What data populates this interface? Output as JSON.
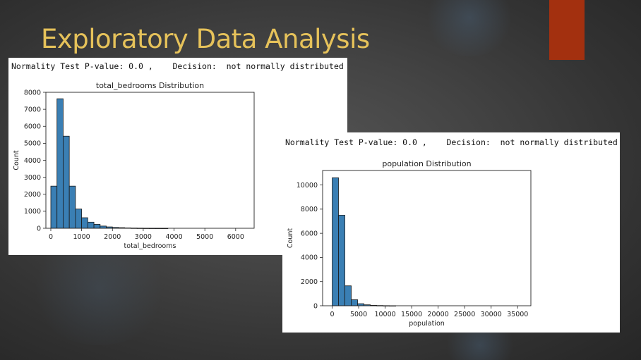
{
  "slide": {
    "title": "Exploratory Data Analysis",
    "colors": {
      "title": "#e6c25a",
      "accent_block": "#a3300f",
      "bar_fill": "#3a7fb4",
      "bar_edge": "#1a1a1a"
    }
  },
  "panels": [
    {
      "test_line": "Normality Test P-value: 0.0 ,    Decision:  not normally distributed"
    },
    {
      "test_line": "Normality Test P-value: 0.0 ,    Decision:  not normally distributed"
    }
  ],
  "chart_data": [
    {
      "type": "bar",
      "title": "total_bedrooms Distribution",
      "xlabel": "total_bedrooms",
      "ylabel": "Count",
      "xlim": [
        -160,
        6600
      ],
      "ylim": [
        0,
        8000
      ],
      "xticks": [
        0,
        1000,
        2000,
        3000,
        4000,
        5000,
        6000
      ],
      "yticks": [
        0,
        1000,
        2000,
        3000,
        4000,
        5000,
        6000,
        7000,
        8000
      ],
      "grid": false,
      "bin_width": 200,
      "bins": [
        {
          "x0": 0,
          "x1": 200,
          "count": 2480
        },
        {
          "x0": 200,
          "x1": 400,
          "count": 7620
        },
        {
          "x0": 400,
          "x1": 600,
          "count": 5420
        },
        {
          "x0": 600,
          "x1": 800,
          "count": 2480
        },
        {
          "x0": 800,
          "x1": 1000,
          "count": 1130
        },
        {
          "x0": 1000,
          "x1": 1200,
          "count": 620
        },
        {
          "x0": 1200,
          "x1": 1400,
          "count": 360
        },
        {
          "x0": 1400,
          "x1": 1600,
          "count": 230
        },
        {
          "x0": 1600,
          "x1": 1800,
          "count": 130
        },
        {
          "x0": 1800,
          "x1": 2000,
          "count": 80
        },
        {
          "x0": 2000,
          "x1": 2200,
          "count": 50
        },
        {
          "x0": 2200,
          "x1": 2400,
          "count": 35
        },
        {
          "x0": 2400,
          "x1": 2600,
          "count": 20
        },
        {
          "x0": 2600,
          "x1": 2800,
          "count": 12
        },
        {
          "x0": 2800,
          "x1": 3000,
          "count": 8
        },
        {
          "x0": 3000,
          "x1": 3200,
          "count": 5
        },
        {
          "x0": 3200,
          "x1": 3400,
          "count": 3
        },
        {
          "x0": 3400,
          "x1": 3600,
          "count": 2
        },
        {
          "x0": 3600,
          "x1": 3800,
          "count": 1
        }
      ]
    },
    {
      "type": "bar",
      "title": "population Distribution",
      "xlabel": "population",
      "ylabel": "Count",
      "xlim": [
        -1800,
        37500
      ],
      "ylim": [
        0,
        11200
      ],
      "xticks": [
        0,
        5000,
        10000,
        15000,
        20000,
        25000,
        30000,
        35000
      ],
      "yticks": [
        0,
        2000,
        4000,
        6000,
        8000,
        10000
      ],
      "grid": false,
      "bin_width": 1200,
      "bins": [
        {
          "x0": 0,
          "x1": 1200,
          "count": 10600
        },
        {
          "x0": 1200,
          "x1": 2400,
          "count": 7500
        },
        {
          "x0": 2400,
          "x1": 3600,
          "count": 1650
        },
        {
          "x0": 3600,
          "x1": 4800,
          "count": 500
        },
        {
          "x0": 4800,
          "x1": 6000,
          "count": 170
        },
        {
          "x0": 6000,
          "x1": 7200,
          "count": 80
        },
        {
          "x0": 7200,
          "x1": 8400,
          "count": 40
        },
        {
          "x0": 8400,
          "x1": 9600,
          "count": 20
        },
        {
          "x0": 9600,
          "x1": 10800,
          "count": 10
        },
        {
          "x0": 10800,
          "x1": 12000,
          "count": 5
        }
      ]
    }
  ]
}
